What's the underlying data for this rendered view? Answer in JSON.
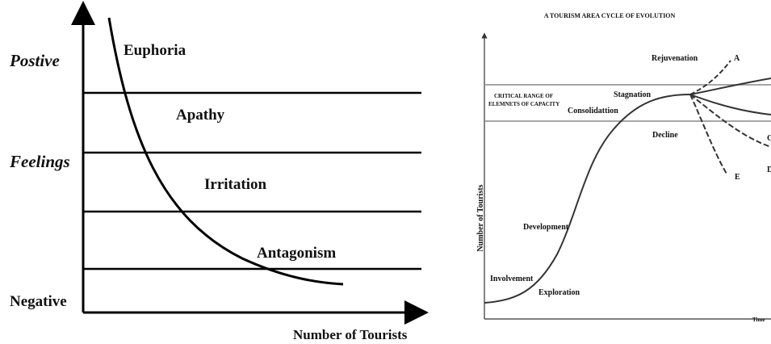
{
  "left": {
    "axis_labels": {
      "top": "Postive",
      "middle": "Feelings",
      "bottom": "Negative",
      "x": "Number of Tourists"
    },
    "stages": [
      "Euphoria",
      "Apathy",
      "Irritation",
      "Antagonism"
    ]
  },
  "right": {
    "title": "A TOURISM AREA CYCLE OF EVOLUTION",
    "capacity_label": [
      "CRITICAL RANGE OF",
      "ELEMNETS OF CAPACITY"
    ],
    "y_label": "Number of Tourists",
    "x_label": "Time",
    "stages": {
      "exploration": "Exploration",
      "involvement": "Involvement",
      "development": "Development",
      "consolidation": "Consolidattion",
      "stagnation": "Stagnation",
      "rejuvenation": "Rejuvenation",
      "decline": "Decline"
    },
    "branches": [
      "A",
      "C",
      "D",
      "E"
    ]
  }
}
